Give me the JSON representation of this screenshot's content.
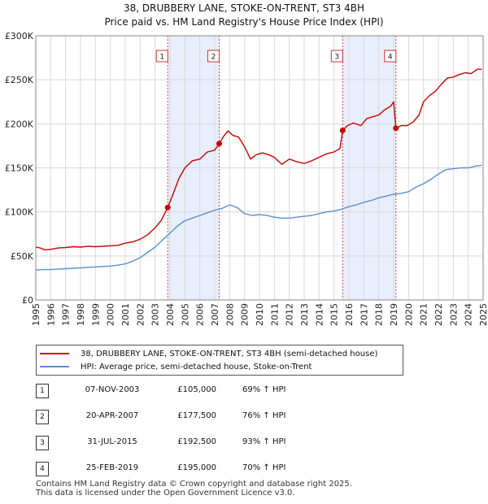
{
  "title": {
    "line1": "38, DRUBBERY LANE, STOKE-ON-TRENT, ST3 4BH",
    "line2": "Price paid vs. HM Land Registry's House Price Index (HPI)"
  },
  "chart_data": {
    "type": "line",
    "xlim": [
      1995,
      2025
    ],
    "ylim": [
      0,
      300000
    ],
    "x_ticks": [
      "1995",
      "1996",
      "1997",
      "1998",
      "1999",
      "2000",
      "2001",
      "2002",
      "2003",
      "2004",
      "2005",
      "2006",
      "2007",
      "2008",
      "2009",
      "2010",
      "2011",
      "2012",
      "2013",
      "2014",
      "2015",
      "2016",
      "2017",
      "2018",
      "2019",
      "2020",
      "2021",
      "2022",
      "2023",
      "2024",
      "2025"
    ],
    "y_ticks": [
      {
        "value": 0,
        "label": "£0"
      },
      {
        "value": 50000,
        "label": "£50K"
      },
      {
        "value": 100000,
        "label": "£100K"
      },
      {
        "value": 150000,
        "label": "£150K"
      },
      {
        "value": 200000,
        "label": "£200K"
      },
      {
        "value": 250000,
        "label": "£250K"
      },
      {
        "value": 300000,
        "label": "£300K"
      }
    ],
    "grid": true,
    "shaded_ranges": [
      [
        2003.85,
        2007.3
      ],
      [
        2015.58,
        2019.15
      ]
    ],
    "series": [
      {
        "name": "38, DRUBBERY LANE, STOKE-ON-TRENT, ST3 4BH (semi-detached house)",
        "color": "#cc0000",
        "x": [
          1995.0,
          1995.3,
          1995.6,
          1996.0,
          1996.5,
          1997.0,
          1997.5,
          1998.0,
          1998.5,
          1999.0,
          1999.5,
          2000.0,
          2000.5,
          2001.0,
          2001.5,
          2002.0,
          2002.5,
          2003.0,
          2003.4,
          2003.85,
          2004.2,
          2004.6,
          2005.0,
          2005.5,
          2006.0,
          2006.5,
          2007.0,
          2007.3,
          2007.6,
          2007.9,
          2008.2,
          2008.6,
          2009.0,
          2009.4,
          2009.8,
          2010.2,
          2010.6,
          2011.0,
          2011.5,
          2012.0,
          2012.5,
          2013.0,
          2013.5,
          2014.0,
          2014.5,
          2015.0,
          2015.4,
          2015.58,
          2015.9,
          2016.3,
          2016.8,
          2017.2,
          2017.6,
          2018.0,
          2018.4,
          2018.8,
          2019.0,
          2019.15,
          2019.5,
          2019.9,
          2020.3,
          2020.7,
          2021.0,
          2021.4,
          2021.8,
          2022.2,
          2022.6,
          2023.0,
          2023.4,
          2023.8,
          2024.2,
          2024.6,
          2024.9
        ],
        "y": [
          60000,
          59000,
          57000,
          57500,
          59000,
          59500,
          60500,
          60000,
          61000,
          60500,
          61000,
          61500,
          62000,
          64500,
          66000,
          69000,
          74000,
          82000,
          90000,
          105000,
          120000,
          138000,
          150000,
          158000,
          160000,
          168000,
          170000,
          177500,
          186000,
          192000,
          187000,
          185000,
          174000,
          160000,
          165000,
          167000,
          165000,
          162000,
          154000,
          160000,
          157000,
          155000,
          158000,
          162000,
          166000,
          168000,
          172000,
          192500,
          198000,
          201000,
          198000,
          206000,
          208000,
          210000,
          216000,
          220000,
          225000,
          195000,
          198000,
          198000,
          202000,
          210000,
          225000,
          232000,
          237000,
          245000,
          252000,
          253000,
          256000,
          258000,
          257000,
          262000,
          262000
        ]
      },
      {
        "name": "HPI: Average price, semi-detached house, Stoke-on-Trent",
        "color": "#5b8fd4",
        "x": [
          1995.0,
          1995.5,
          1996.0,
          1996.5,
          1997.0,
          1997.5,
          1998.0,
          1998.5,
          1999.0,
          1999.5,
          2000.0,
          2000.5,
          2001.0,
          2001.5,
          2002.0,
          2002.5,
          2003.0,
          2003.5,
          2004.0,
          2004.5,
          2005.0,
          2005.5,
          2006.0,
          2006.5,
          2007.0,
          2007.5,
          2008.0,
          2008.5,
          2009.0,
          2009.5,
          2010.0,
          2010.5,
          2011.0,
          2011.5,
          2012.0,
          2012.5,
          2013.0,
          2013.5,
          2014.0,
          2014.5,
          2015.0,
          2015.5,
          2016.0,
          2016.5,
          2017.0,
          2017.5,
          2018.0,
          2018.5,
          2019.0,
          2019.5,
          2020.0,
          2020.5,
          2021.0,
          2021.5,
          2022.0,
          2022.5,
          2023.0,
          2023.5,
          2024.0,
          2024.5,
          2024.9
        ],
        "y": [
          34000,
          34500,
          34500,
          35000,
          35500,
          36000,
          36500,
          37000,
          37500,
          38000,
          38500,
          39500,
          41000,
          44000,
          48000,
          54000,
          60000,
          68000,
          76000,
          84000,
          90000,
          93000,
          96000,
          99000,
          102000,
          104000,
          108000,
          105000,
          98000,
          96000,
          97000,
          96000,
          94000,
          93000,
          93000,
          94000,
          95000,
          96000,
          98000,
          100000,
          101000,
          103000,
          106000,
          108000,
          111000,
          113000,
          116000,
          118000,
          120000,
          121000,
          123000,
          128000,
          132000,
          137000,
          143000,
          148000,
          149000,
          150000,
          150000,
          152000,
          153000
        ]
      }
    ],
    "sales": [
      {
        "label": "1",
        "x": 2003.85,
        "y": 105000
      },
      {
        "label": "2",
        "x": 2007.3,
        "y": 177500
      },
      {
        "label": "3",
        "x": 2015.58,
        "y": 192500
      },
      {
        "label": "4",
        "x": 2019.15,
        "y": 195000
      }
    ]
  },
  "legend": {
    "property_label": "38, DRUBBERY LANE, STOKE-ON-TRENT, ST3 4BH (semi-detached house)",
    "hpi_label": "HPI: Average price, semi-detached house, Stoke-on-Trent",
    "property_color": "#cc0000",
    "hpi_color": "#5b8fd4"
  },
  "transactions": [
    {
      "num": "1",
      "date": "07-NOV-2003",
      "price": "£105,000",
      "hpi": "69% ↑ HPI"
    },
    {
      "num": "2",
      "date": "20-APR-2007",
      "price": "£177,500",
      "hpi": "76% ↑ HPI"
    },
    {
      "num": "3",
      "date": "31-JUL-2015",
      "price": "£192,500",
      "hpi": "93% ↑ HPI"
    },
    {
      "num": "4",
      "date": "25-FEB-2019",
      "price": "£195,000",
      "hpi": "70% ↑ HPI"
    }
  ],
  "footer": {
    "line1": "Contains HM Land Registry data © Crown copyright and database right 2025.",
    "line2": "This data is licensed under the Open Government Licence v3.0."
  }
}
